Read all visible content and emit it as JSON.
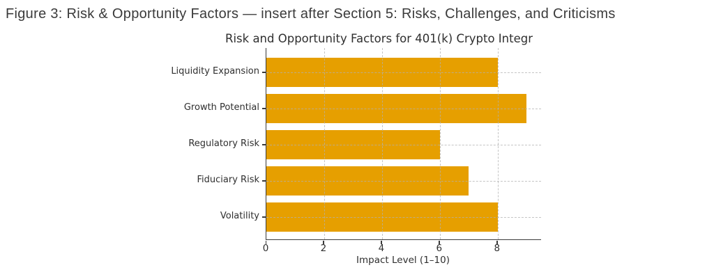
{
  "heading": {
    "text": "Figure 3: Risk & Opportunity Factors — insert after Section 5: Risks, Challenges, and Criticisms",
    "color": "#3b3b3b"
  },
  "chart_data": {
    "type": "bar",
    "orientation": "horizontal",
    "title": "Risk and Opportunity Factors for 401(k) Crypto Integr",
    "categories": [
      "Liquidity Expansion",
      "Growth Potential",
      "Regulatory Risk",
      "Fiduciary Risk",
      "Volatility"
    ],
    "values": [
      8,
      9,
      6,
      7,
      8
    ],
    "xlabel": "Impact Level (1–10)",
    "xticks": [
      0,
      2,
      4,
      6,
      8
    ],
    "xlim": [
      0,
      9.5
    ],
    "grid": "dashed, both axes, drawn over bars",
    "legend": "none",
    "colors": {
      "bar": "#E69F00",
      "axis": "#3a3a3a",
      "text": "#2f2f2f",
      "grid": "#b0b0b0",
      "background": "#ffffff"
    }
  }
}
